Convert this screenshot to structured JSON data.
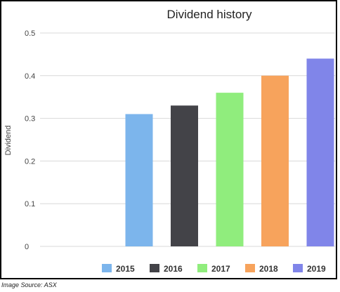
{
  "chart_data": {
    "type": "bar",
    "title": "Dividend history",
    "xlabel": "",
    "ylabel": "Dividend",
    "ylim": [
      0,
      0.5
    ],
    "yticks": [
      "0",
      "0.1",
      "0.2",
      "0.3",
      "0.4",
      "0.5"
    ],
    "grid": true,
    "legend_position": "bottom",
    "categories": [
      "2015",
      "2016",
      "2017",
      "2018",
      "2019"
    ],
    "values": [
      0.31,
      0.33,
      0.36,
      0.4,
      0.44
    ],
    "colors": [
      "#7cb5ec",
      "#434348",
      "#90ed7d",
      "#f7a35c",
      "#8085e9"
    ]
  },
  "source_note": "Image Source: ASX"
}
